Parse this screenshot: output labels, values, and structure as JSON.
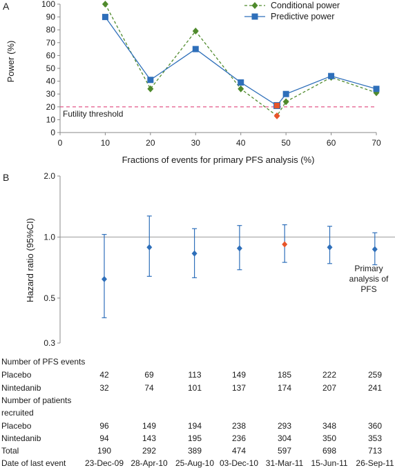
{
  "chart_data": [
    {
      "type": "line",
      "panel_label": "A",
      "xlabel": "Fractions of events for primary PFS analysis (%)",
      "ylabel": "Power (%)",
      "xlim": [
        0,
        70
      ],
      "ylim": [
        0,
        100
      ],
      "x_ticks": [
        0,
        10,
        20,
        30,
        40,
        50,
        60,
        70
      ],
      "y_ticks": [
        0,
        10,
        20,
        30,
        40,
        50,
        60,
        70,
        80,
        90,
        100
      ],
      "threshold": {
        "value": 20,
        "label": "Futility threshold",
        "color": "#e0457b"
      },
      "legend_position": "top-right",
      "series": [
        {
          "name": "Conditional power",
          "marker": "diamond",
          "line": "dashed",
          "color": "#4f8a2c",
          "x": [
            10,
            20,
            30,
            40,
            48,
            50,
            60,
            70
          ],
          "values": [
            100,
            34,
            79,
            34,
            13,
            24,
            43,
            31
          ]
        },
        {
          "name": "Predictive power",
          "marker": "square",
          "line": "solid",
          "color": "#2e6fba",
          "x": [
            10,
            20,
            30,
            40,
            48,
            50,
            60,
            70
          ],
          "values": [
            90,
            41,
            65,
            39,
            21,
            30,
            44,
            34
          ]
        }
      ],
      "highlight": {
        "index": 4,
        "color": "#e8552a"
      }
    },
    {
      "type": "scatter",
      "panel_label": "B",
      "ylabel": "Hazard ratio (95%CI)",
      "yscale": "log",
      "ylim": [
        0.3,
        2.0
      ],
      "y_ticks": [
        0.3,
        0.5,
        1.0,
        2.0
      ],
      "y_tick_labels": [
        "0.3",
        "0.5",
        "1.0",
        "2.0"
      ],
      "reference_line": 1.0,
      "annotation": [
        "Primary",
        "analysis of",
        "PFS"
      ],
      "color": "#2e6fba",
      "highlight": {
        "index": 4,
        "color": "#e8552a"
      },
      "points": [
        {
          "hr": 0.62,
          "lower": 0.4,
          "upper": 1.03
        },
        {
          "hr": 0.89,
          "lower": 0.64,
          "upper": 1.27
        },
        {
          "hr": 0.83,
          "lower": 0.63,
          "upper": 1.1
        },
        {
          "hr": 0.88,
          "lower": 0.69,
          "upper": 1.14
        },
        {
          "hr": 0.92,
          "lower": 0.75,
          "upper": 1.15
        },
        {
          "hr": 0.89,
          "lower": 0.74,
          "upper": 1.13
        },
        {
          "hr": 0.87,
          "lower": 0.73,
          "upper": 1.05
        },
        {
          "hr": 0.88,
          "lower": 0.75,
          "upper": 1.05
        }
      ]
    }
  ],
  "table": {
    "pfs_events_header": "Number of PFS events",
    "patients_header_line1": "Number of patients",
    "patients_header_line2": "recruited",
    "rows": [
      {
        "key": "pfs_placebo",
        "label": "Placebo",
        "values": [
          "42",
          "69",
          "113",
          "149",
          "185",
          "222",
          "259"
        ]
      },
      {
        "key": "pfs_nintedanib",
        "label": "Nintedanib",
        "values": [
          "32",
          "74",
          "101",
          "137",
          "174",
          "207",
          "241"
        ]
      },
      {
        "key": "rec_placebo",
        "label": "Placebo",
        "values": [
          "96",
          "149",
          "194",
          "238",
          "293",
          "348",
          "360"
        ]
      },
      {
        "key": "rec_nintedanib",
        "label": "Nintedanib",
        "values": [
          "94",
          "143",
          "195",
          "236",
          "304",
          "350",
          "353"
        ]
      },
      {
        "key": "total",
        "label": "Total",
        "values": [
          "190",
          "292",
          "389",
          "474",
          "597",
          "698",
          "713"
        ]
      },
      {
        "key": "date",
        "label": "Date of last event",
        "values": [
          "23-Dec-09",
          "28-Apr-10",
          "25-Aug-10",
          "03-Dec-10",
          "31-Mar-11",
          "15-Jun-11",
          "26-Sep-11"
        ]
      }
    ]
  }
}
